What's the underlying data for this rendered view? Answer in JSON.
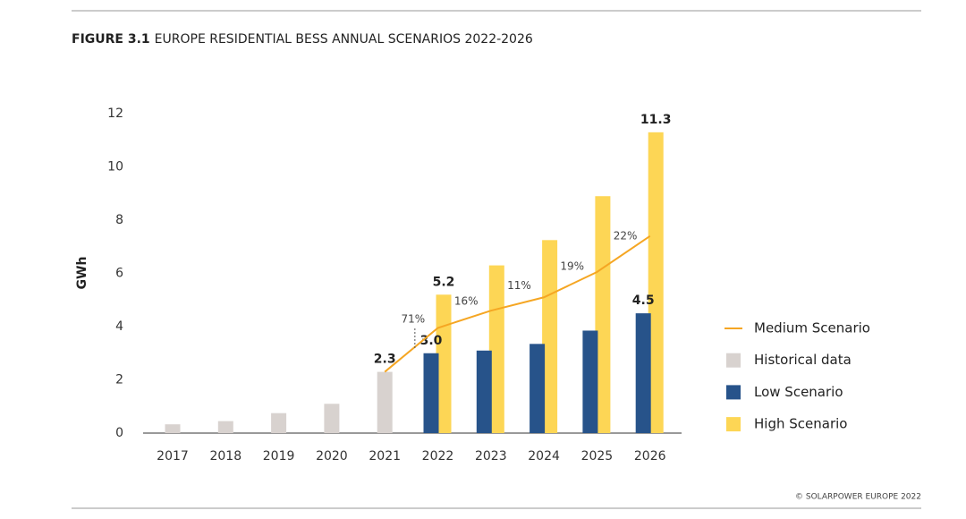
{
  "chart_data": {
    "type": "bar",
    "title_prefix": "FIGURE 3.1",
    "title": "EUROPE RESIDENTIAL BESS ANNUAL SCENARIOS 2022-2026",
    "y_label": "GWh",
    "source": "© SOLARPOWER EUROPE 2022",
    "categories": [
      "2017",
      "2018",
      "2019",
      "2020",
      "2021",
      "2022",
      "2023",
      "2024",
      "2025",
      "2026"
    ],
    "series": [
      {
        "name": "Medium Scenario",
        "type": "line",
        "color": "#f5a623",
        "values": [
          null,
          null,
          null,
          null,
          2.3,
          3.95,
          4.6,
          5.1,
          6.05,
          7.4
        ],
        "annotations": [
          null,
          null,
          null,
          null,
          null,
          "71%",
          "16%",
          "11%",
          "19%",
          "22%"
        ]
      },
      {
        "name": "Historical data",
        "type": "bar",
        "color": "#d8d2cf",
        "values": [
          0.33,
          0.45,
          0.75,
          1.1,
          2.3,
          null,
          null,
          null,
          null,
          null
        ],
        "value_labels": [
          null,
          null,
          null,
          null,
          "2.3",
          null,
          null,
          null,
          null,
          null
        ]
      },
      {
        "name": "Low Scenario",
        "type": "bar",
        "color": "#27538a",
        "values": [
          null,
          null,
          null,
          null,
          null,
          3.0,
          3.1,
          3.35,
          3.85,
          4.5
        ],
        "value_labels": [
          null,
          null,
          null,
          null,
          null,
          "3.0",
          null,
          null,
          null,
          "4.5"
        ]
      },
      {
        "name": "High Scenario",
        "type": "bar",
        "color": "#fdd655",
        "values": [
          null,
          null,
          null,
          null,
          null,
          5.2,
          6.3,
          7.25,
          8.9,
          11.3
        ],
        "value_labels": [
          null,
          null,
          null,
          null,
          null,
          "5.2",
          null,
          null,
          null,
          "11.3"
        ]
      }
    ],
    "ylim": [
      0,
      12
    ],
    "yticks": [
      0,
      2,
      4,
      6,
      8,
      10,
      12
    ]
  }
}
